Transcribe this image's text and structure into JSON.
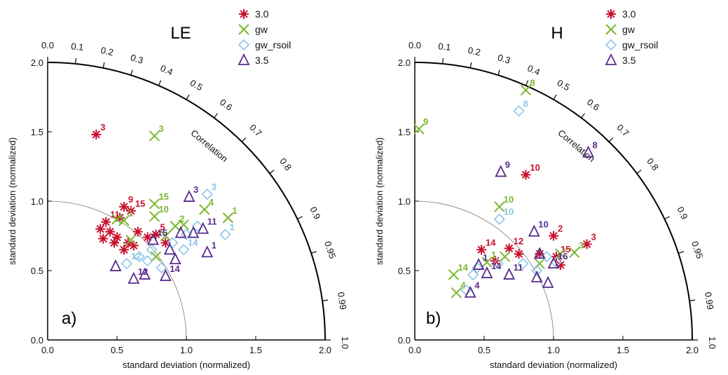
{
  "marker_colors": {
    "3.0": "#c8102e",
    "gw": "#7ab82f",
    "gw_rsoil": "#8ec5e8",
    "3.5": "#5a2d8c"
  },
  "marker_shapes": {
    "3.0": "asterisk",
    "gw": "x-cross",
    "gw_rsoil": "diamond",
    "3.5": "triangle"
  },
  "chart_data": [
    {
      "type": "scatter",
      "title": "LE",
      "panel_label": "a)",
      "xlabel": "standard deviation (normalized)",
      "ylabel": "standard deviation (normalized)",
      "correlation_label": "Correlation",
      "xlim": [
        0,
        2
      ],
      "ylim": [
        0,
        2
      ],
      "x_ticks": [
        "0.0",
        "0.5",
        "1.0",
        "1.5",
        "2.0"
      ],
      "y_ticks": [
        "0.0",
        "0.5",
        "1.0",
        "1.5",
        "2.0"
      ],
      "correlation_ticks": [
        "0.0",
        "0.1",
        "0.2",
        "0.3",
        "0.4",
        "0.5",
        "0.6",
        "0.7",
        "0.8",
        "0.9",
        "0.95",
        "0.99",
        "1.0"
      ],
      "reference_std": 1.0,
      "legend": [
        "3.0",
        "gw",
        "gw_rsoil",
        "3.5"
      ],
      "series": [
        {
          "name": "3.0",
          "points": [
            {
              "x": 0.35,
              "y": 1.48,
              "label": "3"
            },
            {
              "x": 0.55,
              "y": 0.96,
              "label": "9"
            },
            {
              "x": 0.6,
              "y": 0.93,
              "label": "15"
            },
            {
              "x": 0.42,
              "y": 0.85,
              "label": "11"
            },
            {
              "x": 0.52,
              "y": 0.88,
              "label": ""
            },
            {
              "x": 0.38,
              "y": 0.8,
              "label": ""
            },
            {
              "x": 0.45,
              "y": 0.78,
              "label": ""
            },
            {
              "x": 0.5,
              "y": 0.74,
              "label": ""
            },
            {
              "x": 0.58,
              "y": 0.7,
              "label": ""
            },
            {
              "x": 0.62,
              "y": 0.68,
              "label": ""
            },
            {
              "x": 0.4,
              "y": 0.73,
              "label": ""
            },
            {
              "x": 0.48,
              "y": 0.7,
              "label": ""
            },
            {
              "x": 0.55,
              "y": 0.65,
              "label": ""
            },
            {
              "x": 0.65,
              "y": 0.78,
              "label": ""
            },
            {
              "x": 0.72,
              "y": 0.74,
              "label": ""
            },
            {
              "x": 0.78,
              "y": 0.76,
              "label": "5"
            },
            {
              "x": 0.85,
              "y": 0.7,
              "label": ""
            }
          ]
        },
        {
          "name": "gw",
          "points": [
            {
              "x": 0.77,
              "y": 1.47,
              "label": "3"
            },
            {
              "x": 0.77,
              "y": 0.98,
              "label": "15"
            },
            {
              "x": 0.77,
              "y": 0.89,
              "label": "10"
            },
            {
              "x": 0.55,
              "y": 0.86,
              "label": "1"
            },
            {
              "x": 0.5,
              "y": 0.87,
              "label": ""
            },
            {
              "x": 1.13,
              "y": 0.94,
              "label": "4"
            },
            {
              "x": 1.3,
              "y": 0.88,
              "label": "1"
            },
            {
              "x": 0.92,
              "y": 0.82,
              "label": "2"
            },
            {
              "x": 0.98,
              "y": 0.83,
              "label": ""
            },
            {
              "x": 0.85,
              "y": 0.75,
              "label": ""
            },
            {
              "x": 0.6,
              "y": 0.72,
              "label": ""
            },
            {
              "x": 0.78,
              "y": 0.6,
              "label": ""
            }
          ]
        },
        {
          "name": "gw_rsoil",
          "points": [
            {
              "x": 1.15,
              "y": 1.05,
              "label": "3"
            },
            {
              "x": 1.28,
              "y": 0.76,
              "label": "1"
            },
            {
              "x": 0.57,
              "y": 0.55,
              "label": "12"
            },
            {
              "x": 0.98,
              "y": 0.65,
              "label": "14"
            },
            {
              "x": 1.08,
              "y": 0.82,
              "label": ""
            },
            {
              "x": 0.9,
              "y": 0.7,
              "label": ""
            },
            {
              "x": 0.66,
              "y": 0.6,
              "label": ""
            },
            {
              "x": 0.75,
              "y": 0.65,
              "label": ""
            },
            {
              "x": 0.82,
              "y": 0.52,
              "label": ""
            },
            {
              "x": 1.0,
              "y": 0.76,
              "label": ""
            },
            {
              "x": 0.72,
              "y": 0.57,
              "label": ""
            }
          ]
        },
        {
          "name": "3.5",
          "points": [
            {
              "x": 1.02,
              "y": 1.03,
              "label": "3"
            },
            {
              "x": 1.12,
              "y": 0.8,
              "label": "11"
            },
            {
              "x": 1.05,
              "y": 0.77,
              "label": ""
            },
            {
              "x": 1.15,
              "y": 0.63,
              "label": "1"
            },
            {
              "x": 0.49,
              "y": 0.53,
              "label": ""
            },
            {
              "x": 0.62,
              "y": 0.44,
              "label": "12"
            },
            {
              "x": 0.7,
              "y": 0.47,
              "label": ""
            },
            {
              "x": 0.85,
              "y": 0.46,
              "label": "14"
            },
            {
              "x": 0.92,
              "y": 0.58,
              "label": ""
            },
            {
              "x": 0.76,
              "y": 0.72,
              "label": "15"
            },
            {
              "x": 0.88,
              "y": 0.65,
              "label": ""
            },
            {
              "x": 0.96,
              "y": 0.77,
              "label": ""
            }
          ]
        }
      ]
    },
    {
      "type": "scatter",
      "title": "H",
      "panel_label": "b)",
      "xlabel": "standard deviation (normalized)",
      "ylabel": "standard deviation (normalized)",
      "correlation_label": "Correlation",
      "xlim": [
        0,
        2
      ],
      "ylim": [
        0,
        2
      ],
      "x_ticks": [
        "0.0",
        "0.5",
        "1.0",
        "1.5",
        "2.0"
      ],
      "y_ticks": [
        "0.0",
        "0.5",
        "1.0",
        "1.5",
        "2.0"
      ],
      "correlation_ticks": [
        "0.0",
        "0.1",
        "0.2",
        "0.3",
        "0.4",
        "0.5",
        "0.6",
        "0.7",
        "0.8",
        "0.9",
        "0.95",
        "0.99",
        "1.0"
      ],
      "reference_std": 1.0,
      "legend": [
        "3.0",
        "gw",
        "gw_rsoil",
        "3.5"
      ],
      "series": [
        {
          "name": "3.0",
          "points": [
            {
              "x": 0.8,
              "y": 1.19,
              "label": "10"
            },
            {
              "x": 1.24,
              "y": 0.69,
              "label": "3"
            },
            {
              "x": 0.48,
              "y": 0.65,
              "label": "14"
            },
            {
              "x": 0.68,
              "y": 0.66,
              "label": "12"
            },
            {
              "x": 1.0,
              "y": 0.75,
              "label": "2"
            },
            {
              "x": 1.02,
              "y": 0.6,
              "label": "15"
            },
            {
              "x": 0.9,
              "y": 0.62,
              "label": ""
            },
            {
              "x": 1.05,
              "y": 0.54,
              "label": ""
            },
            {
              "x": 0.58,
              "y": 0.57,
              "label": ""
            },
            {
              "x": 0.75,
              "y": 0.62,
              "label": ""
            }
          ]
        },
        {
          "name": "gw",
          "points": [
            {
              "x": 0.03,
              "y": 1.52,
              "label": "9"
            },
            {
              "x": 0.8,
              "y": 1.8,
              "label": "8"
            },
            {
              "x": 0.61,
              "y": 0.96,
              "label": "10"
            },
            {
              "x": 1.15,
              "y": 0.63,
              "label": "3"
            },
            {
              "x": 0.28,
              "y": 0.47,
              "label": "14"
            },
            {
              "x": 0.3,
              "y": 0.34,
              "label": "4"
            },
            {
              "x": 0.52,
              "y": 0.56,
              "label": "1"
            },
            {
              "x": 1.05,
              "y": 0.62,
              "label": ""
            },
            {
              "x": 0.9,
              "y": 0.55,
              "label": ""
            },
            {
              "x": 0.65,
              "y": 0.6,
              "label": ""
            }
          ]
        },
        {
          "name": "gw_rsoil",
          "points": [
            {
              "x": 0.75,
              "y": 1.65,
              "label": "8"
            },
            {
              "x": 0.61,
              "y": 0.87,
              "label": "10"
            },
            {
              "x": 0.37,
              "y": 0.36,
              "label": ""
            },
            {
              "x": 0.42,
              "y": 0.47,
              "label": ""
            },
            {
              "x": 0.45,
              "y": 0.52,
              "label": ""
            },
            {
              "x": 0.95,
              "y": 0.6,
              "label": ""
            },
            {
              "x": 0.88,
              "y": 0.5,
              "label": ""
            },
            {
              "x": 1.02,
              "y": 0.56,
              "label": ""
            },
            {
              "x": 0.6,
              "y": 0.55,
              "label": ""
            },
            {
              "x": 0.78,
              "y": 0.55,
              "label": ""
            }
          ]
        },
        {
          "name": "3.5",
          "points": [
            {
              "x": 1.25,
              "y": 1.35,
              "label": "8"
            },
            {
              "x": 0.62,
              "y": 1.21,
              "label": "9"
            },
            {
              "x": 0.86,
              "y": 0.78,
              "label": "10"
            },
            {
              "x": 0.46,
              "y": 0.54,
              "label": "1"
            },
            {
              "x": 0.52,
              "y": 0.48,
              "label": "14"
            },
            {
              "x": 0.4,
              "y": 0.34,
              "label": "4"
            },
            {
              "x": 0.68,
              "y": 0.47,
              "label": "11"
            },
            {
              "x": 0.96,
              "y": 0.41,
              "label": ""
            },
            {
              "x": 0.88,
              "y": 0.45,
              "label": ""
            },
            {
              "x": 1.0,
              "y": 0.55,
              "label": "16"
            },
            {
              "x": 0.9,
              "y": 0.62,
              "label": ""
            }
          ]
        }
      ]
    }
  ]
}
